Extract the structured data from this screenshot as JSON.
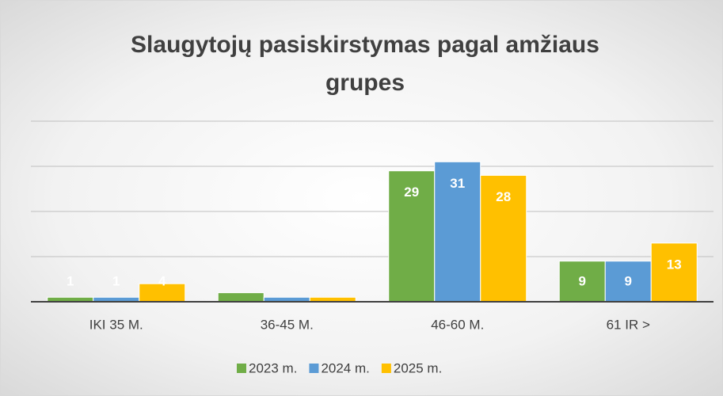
{
  "chart_data": {
    "type": "bar",
    "title": "Slaugytojų pasiskirstymas pagal amžiaus grupes",
    "categories": [
      "IKI 35 M.",
      "36-45 M.",
      "46-60 M.",
      "61 IR >"
    ],
    "series": [
      {
        "name": "2023 m.",
        "color": "#70ad47",
        "values": [
          1,
          2,
          29,
          9
        ],
        "value_labels": [
          "1",
          null,
          "29",
          "9"
        ]
      },
      {
        "name": "2024 m.",
        "color": "#5b9bd5",
        "values": [
          1,
          1,
          31,
          9
        ],
        "value_labels": [
          "1",
          null,
          "31",
          "9"
        ]
      },
      {
        "name": "2025 m.",
        "color": "#ffc000",
        "values": [
          4,
          1,
          28,
          13
        ],
        "value_labels": [
          "4",
          null,
          "28",
          "13"
        ]
      }
    ],
    "ylim": [
      0,
      40
    ],
    "yticks": [
      0,
      10,
      20,
      30,
      40
    ],
    "grid": true
  }
}
